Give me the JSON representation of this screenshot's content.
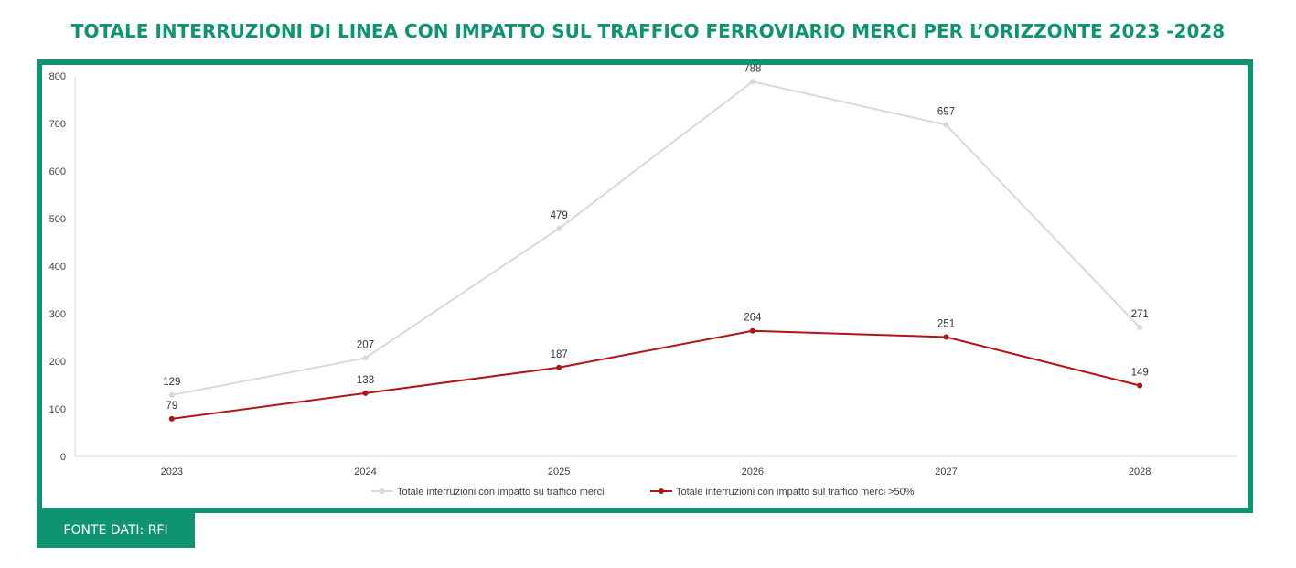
{
  "header": {
    "title": "TOTALE INTERRUZIONI DI LINEA CON IMPATTO SUL TRAFFICO FERROVIARIO MERCI PER L’ORIZZONTE 2023 -2028"
  },
  "footer": {
    "source": "FONTE DATI: RFI"
  },
  "colors": {
    "brand": "#0e9470",
    "series1": "#d9d9d9",
    "series2": "#b01515"
  },
  "chart_data": {
    "type": "line",
    "title": "",
    "xlabel": "",
    "ylabel": "",
    "categories": [
      "2023",
      "2024",
      "2025",
      "2026",
      "2027",
      "2028"
    ],
    "ylim": [
      0,
      800
    ],
    "yticks": [
      0,
      100,
      200,
      300,
      400,
      500,
      600,
      700,
      800
    ],
    "grid": false,
    "legend": "bottom",
    "series": [
      {
        "name": "Totale interruzioni con impatto su traffico merci",
        "values": [
          129,
          207,
          479,
          788,
          697,
          271
        ],
        "color": "#d9d9d9"
      },
      {
        "name": "Totale interruzioni con impatto sul traffico merci >50%",
        "values": [
          79,
          133,
          187,
          264,
          251,
          149
        ],
        "color": "#b01515"
      }
    ]
  }
}
